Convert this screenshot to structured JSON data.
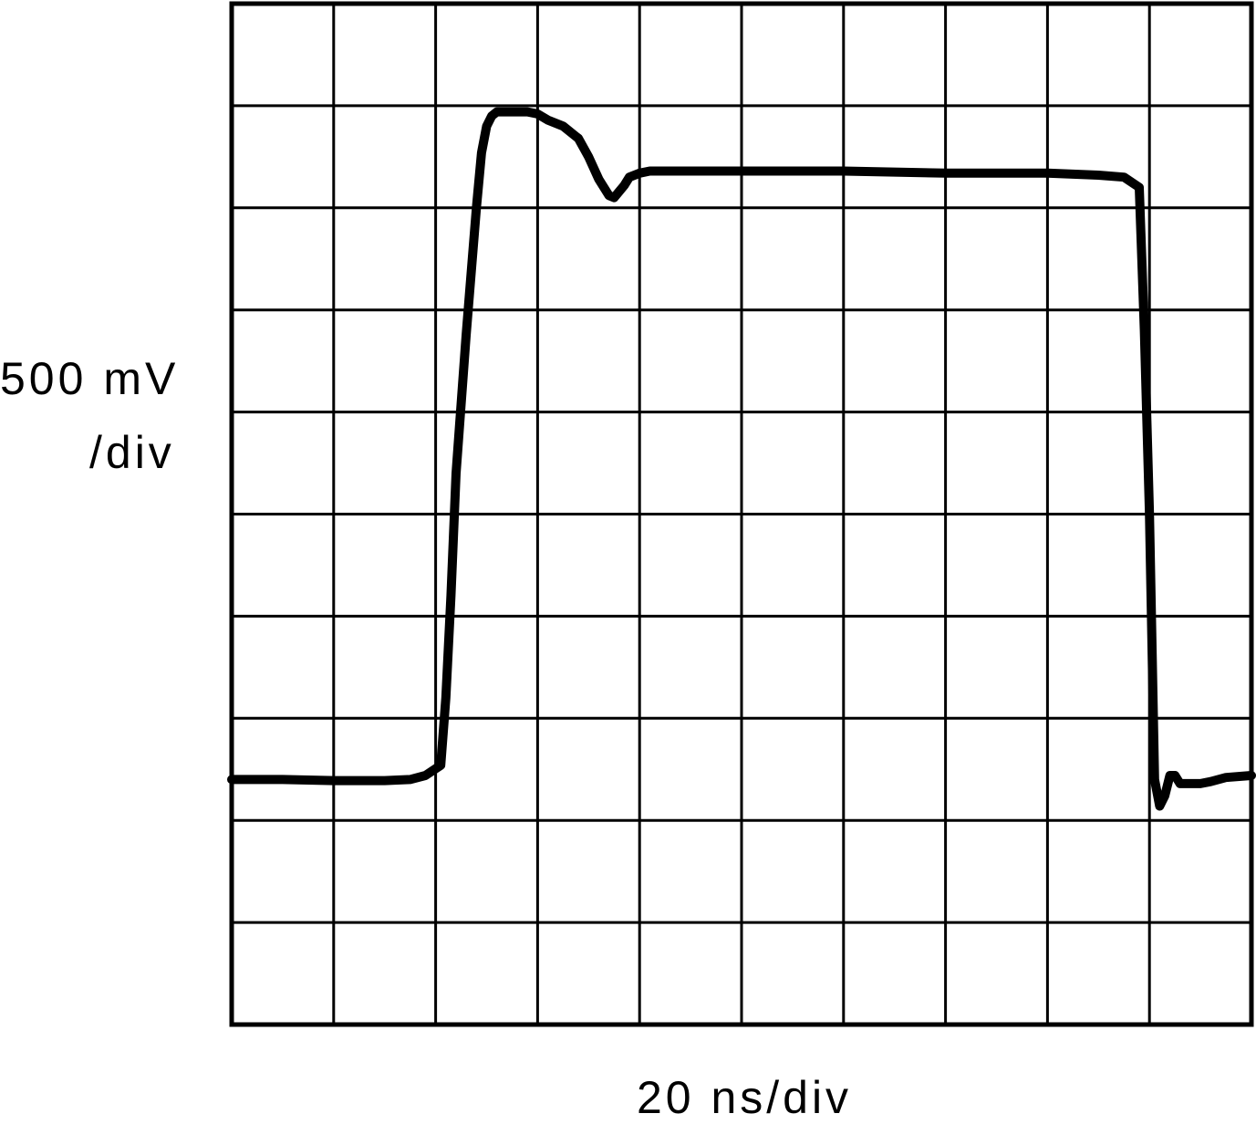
{
  "chart_data": {
    "type": "line",
    "title": "",
    "ylabel_line1": "500 mV",
    "ylabel_line2": "/div",
    "xlabel": "20 ns/div",
    "x_unit": "ns",
    "y_unit": "mV",
    "x_per_div": 20,
    "y_per_div": 500,
    "grid": true,
    "x_divisions": 10,
    "y_divisions": 10,
    "xlim": [
      0,
      200
    ],
    "ylim": [
      -1200,
      3800
    ],
    "series": [
      {
        "x": [
          0,
          10,
          20,
          30,
          35,
          38,
          41,
          42,
          43,
          44,
          46,
          48,
          49,
          50,
          51,
          52,
          53,
          55,
          58,
          60,
          62,
          65,
          68,
          70,
          72,
          74,
          75,
          76,
          77,
          78,
          80,
          82,
          84,
          86,
          88,
          90,
          100,
          120,
          140,
          160,
          170,
          175,
          178,
          179,
          180,
          181,
          182,
          183,
          184,
          185,
          186,
          187,
          188,
          189,
          190,
          192,
          195,
          200
        ],
        "y": [
          0,
          0,
          -5,
          -5,
          0,
          20,
          70,
          400,
          900,
          1500,
          2180,
          2800,
          3070,
          3200,
          3250,
          3270,
          3270,
          3270,
          3270,
          3260,
          3230,
          3200,
          3140,
          3050,
          2940,
          2860,
          2850,
          2880,
          2910,
          2950,
          2970,
          2980,
          2980,
          2980,
          2980,
          2980,
          2980,
          2980,
          2970,
          2970,
          2960,
          2950,
          2900,
          2200,
          1300,
          0,
          -130,
          -80,
          20,
          20,
          -20,
          -20,
          -20,
          -20,
          -20,
          -10,
          10,
          20
        ]
      }
    ]
  }
}
